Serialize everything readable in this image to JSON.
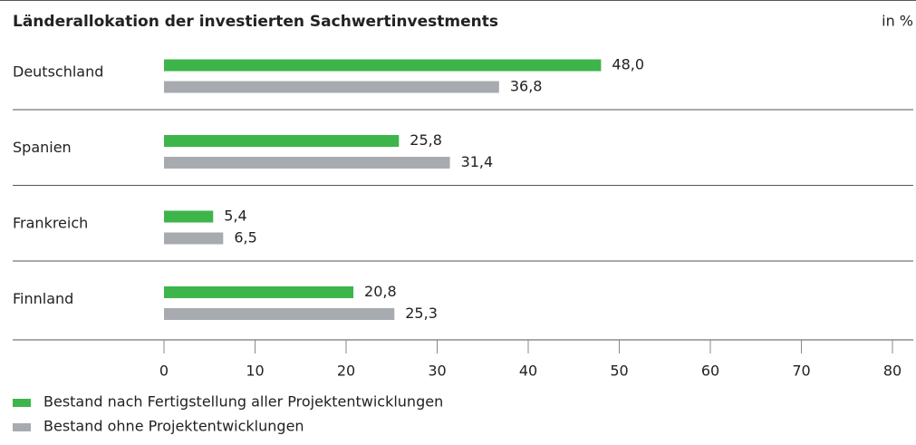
{
  "chart_data": {
    "type": "bar",
    "orientation": "horizontal",
    "title": "Länderallokation der investierten Sachwertinvestments",
    "unit": "in %",
    "categories": [
      "Deutschland",
      "Spanien",
      "Frankreich",
      "Finnland"
    ],
    "series": [
      {
        "name": "Bestand nach Fertigstellung aller Projektentwicklungen",
        "color": "#3db54a",
        "values": [
          48.0,
          25.8,
          5.4,
          20.8
        ],
        "value_labels": [
          "48,0",
          "25,8",
          "5,4",
          "20,8"
        ]
      },
      {
        "name": "Bestand ohne Projektentwicklungen",
        "color": "#a7abb0",
        "values": [
          36.8,
          31.4,
          6.5,
          25.3
        ],
        "value_labels": [
          "36,8",
          "31,4",
          "6,5",
          "25,3"
        ]
      }
    ],
    "xlim": [
      0,
      80
    ],
    "xticks": [
      0,
      10,
      20,
      30,
      40,
      50,
      60,
      70,
      80
    ]
  }
}
